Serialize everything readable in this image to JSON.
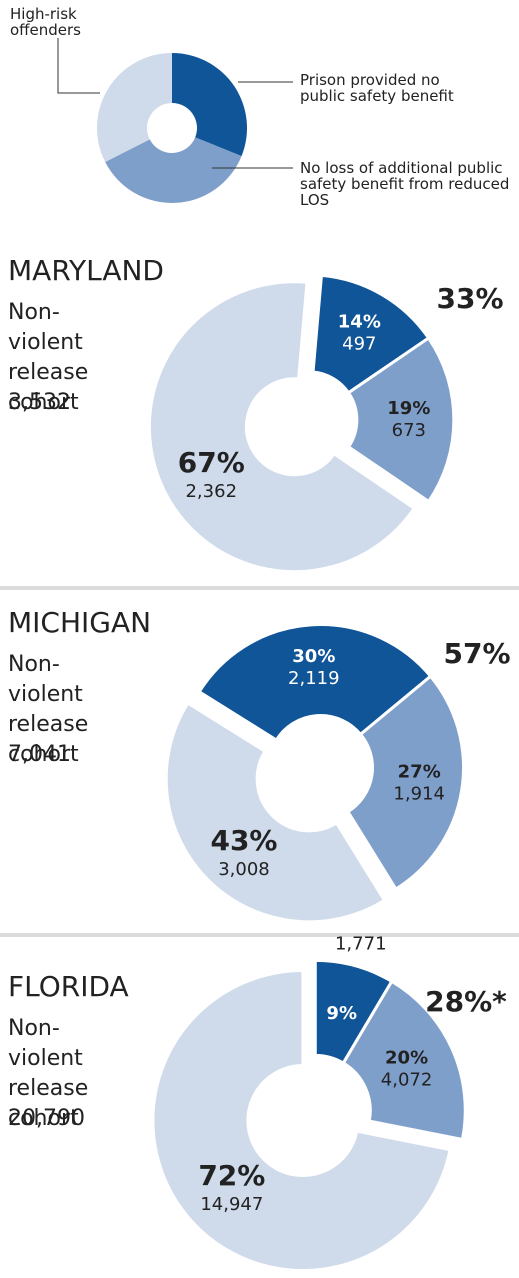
{
  "legend": {
    "items": [
      {
        "label": "Prison provided no public safety benefit",
        "color": "#0f5597"
      },
      {
        "label": "No loss of additional public safety benefit from reduced LOS",
        "color": "#7f9fcb"
      },
      {
        "label": "High-risk offenders",
        "color": "#cfdbeb"
      }
    ]
  },
  "chart_data": [
    {
      "type": "donut",
      "title": "MARYLAND",
      "subtitle": "Non-violent release cohort",
      "total": {
        "value": 3532,
        "label": "3,532"
      },
      "values": [
        497,
        673,
        2362
      ],
      "value_labels": [
        "497",
        "673",
        "2,362"
      ],
      "percents": [
        14,
        19,
        67
      ],
      "percent_labels": [
        "14%",
        "19%",
        "67%"
      ],
      "colors": [
        "#0f5597",
        "#7f9fcb",
        "#cfdbeb"
      ],
      "combined": {
        "value": 33,
        "label": "33%"
      }
    },
    {
      "type": "donut",
      "title": "MICHIGAN",
      "subtitle": "Non-violent release cohort",
      "total": {
        "value": 7041,
        "label": "7,041"
      },
      "values": [
        2119,
        1914,
        3008
      ],
      "value_labels": [
        "2,119",
        "1,914",
        "3,008"
      ],
      "percents": [
        30,
        27,
        43
      ],
      "percent_labels": [
        "30%",
        "27%",
        "43%"
      ],
      "colors": [
        "#0f5597",
        "#7f9fcb",
        "#cfdbeb"
      ],
      "combined": {
        "value": 57,
        "label": "57%"
      }
    },
    {
      "type": "donut",
      "title": "FLORIDA",
      "subtitle": "Non-violent release cohort",
      "total": {
        "value": 20790,
        "label": "20,790"
      },
      "values": [
        1771,
        4072,
        14947
      ],
      "value_labels": [
        "1,771",
        "4,072",
        "14,947"
      ],
      "percents": [
        9,
        20,
        72
      ],
      "percent_labels": [
        "9%",
        "20%",
        "72%"
      ],
      "colors": [
        "#0f5597",
        "#7f9fcb",
        "#cfdbeb"
      ],
      "combined": {
        "value": 28,
        "label": "28%*"
      }
    }
  ]
}
